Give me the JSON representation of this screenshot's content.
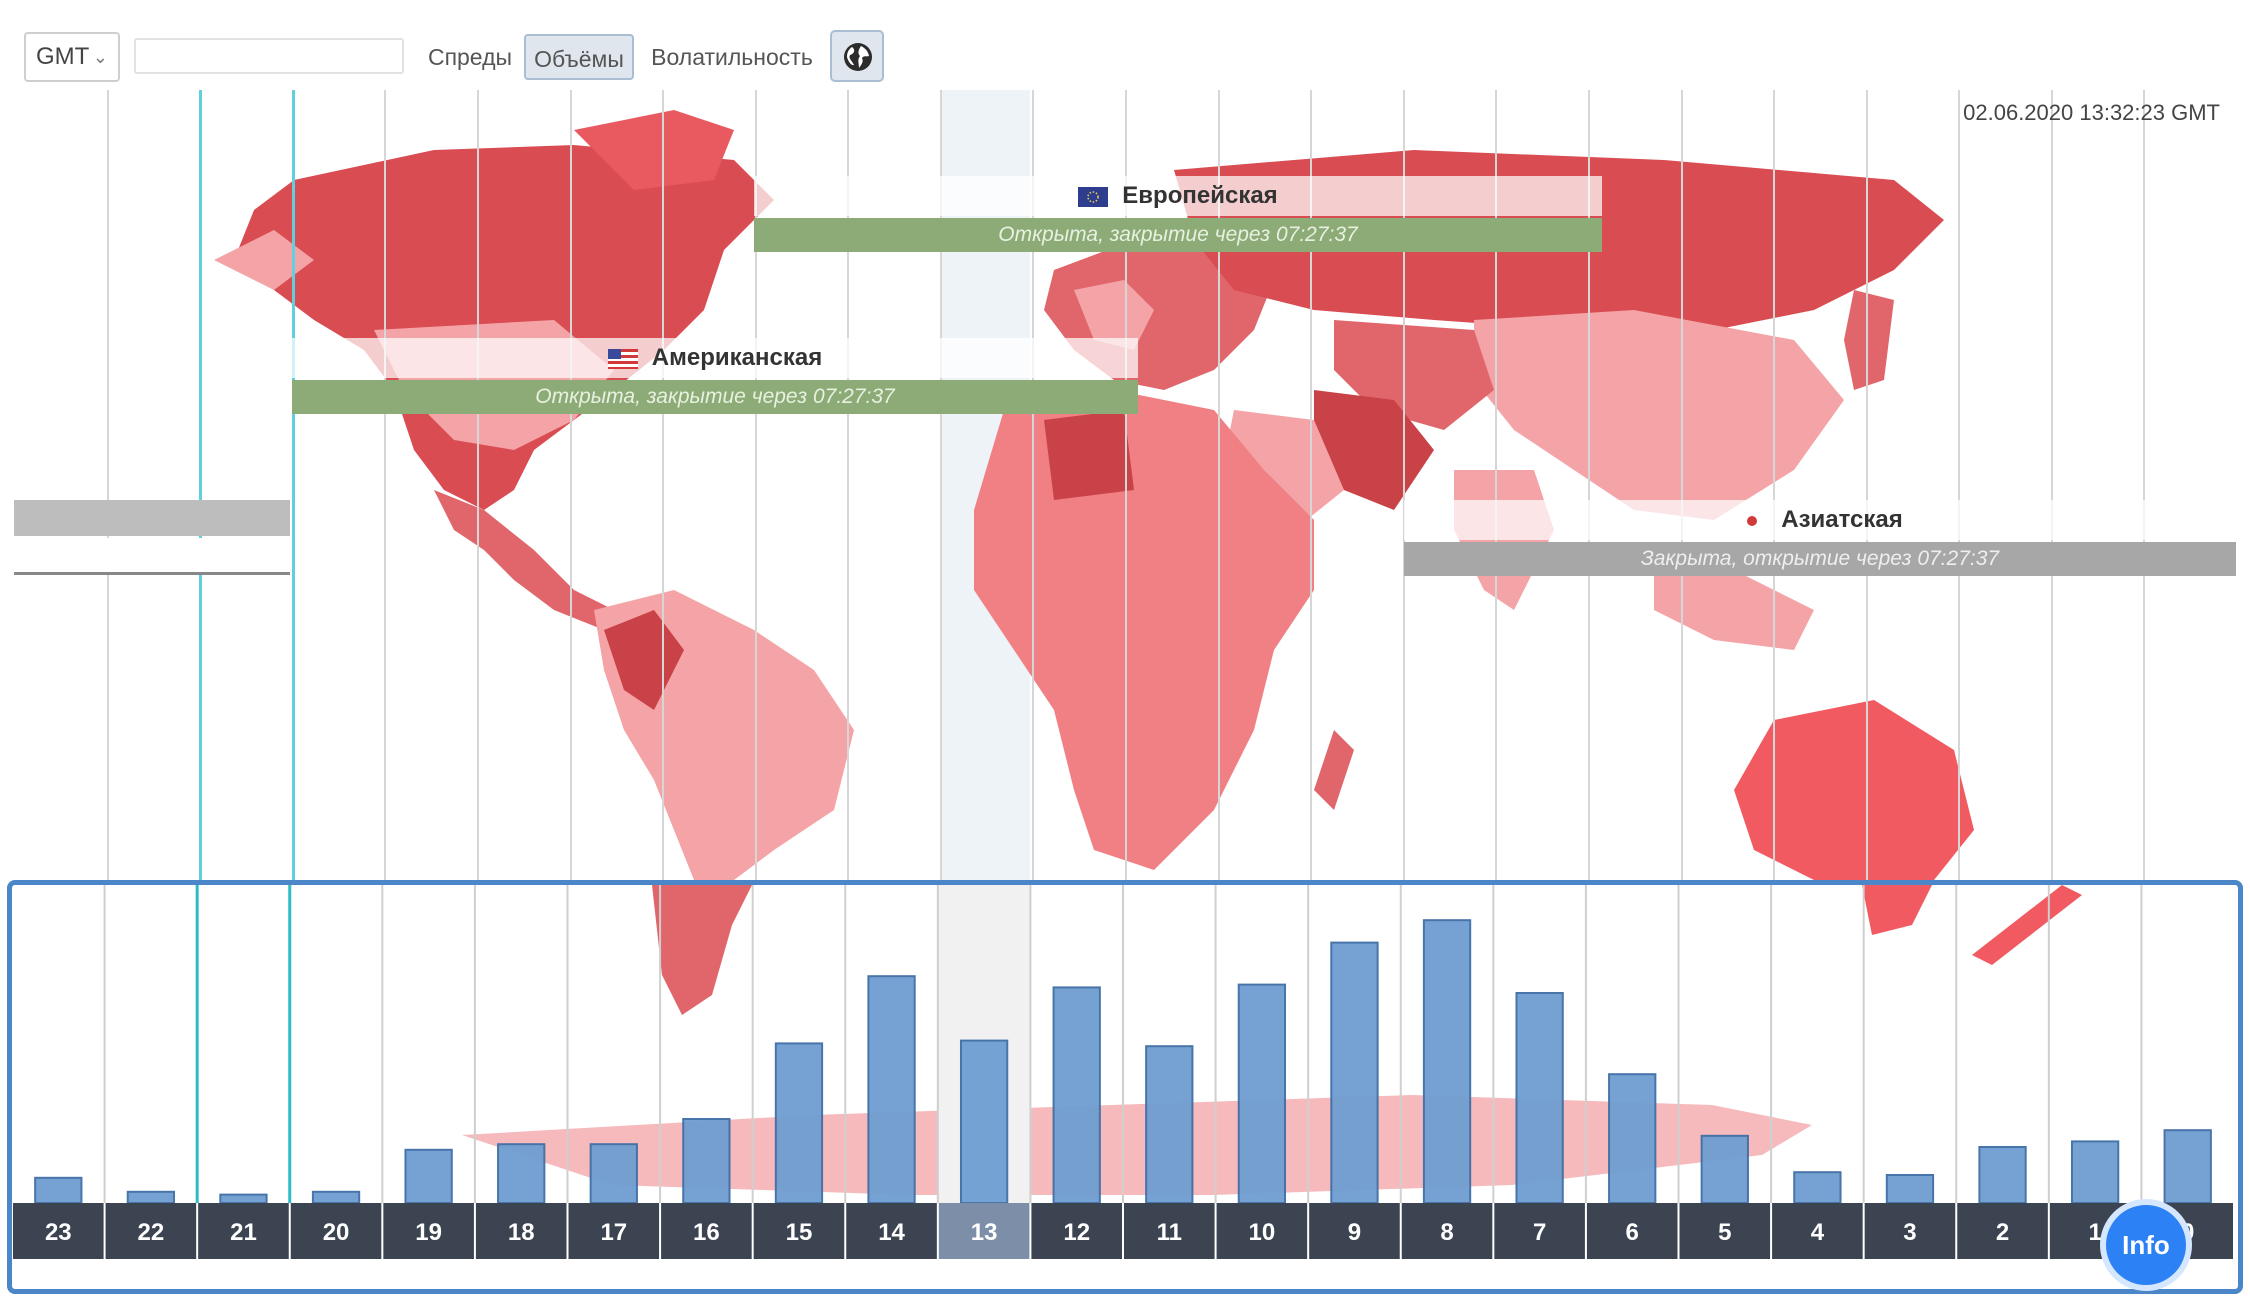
{
  "toolbar": {
    "timezone": "GMT",
    "search_value": "",
    "tabs": [
      {
        "label": "Спреды",
        "active": false
      },
      {
        "label": "Объёмы",
        "active": true
      },
      {
        "label": "Волатильность",
        "active": false
      }
    ],
    "globe_icon": "globe-icon"
  },
  "map": {
    "timestamp": "02.06.2020 13:32:23 GMT",
    "sessions": [
      {
        "name": "Европейская",
        "status": "Открыта, закрытие через 07:27:37",
        "state": "open",
        "flag": "eu"
      },
      {
        "name": "Американская",
        "status": "Открыта, закрытие через 07:27:37",
        "state": "open",
        "flag": "us"
      },
      {
        "name": "Азиатская",
        "status": "Закрыта, открытие через 07:27:37",
        "state": "closed",
        "flag": "jp"
      },
      {
        "name": "",
        "status": "",
        "state": "closed",
        "flag": ""
      }
    ]
  },
  "chart_data": {
    "type": "bar",
    "categories": [
      "23",
      "22",
      "21",
      "20",
      "19",
      "18",
      "17",
      "16",
      "15",
      "14",
      "13",
      "12",
      "11",
      "10",
      "9",
      "8",
      "7",
      "6",
      "5",
      "4",
      "3",
      "2",
      "1",
      "0"
    ],
    "values": [
      9,
      4,
      3,
      4,
      19,
      21,
      21,
      30,
      57,
      81,
      58,
      77,
      56,
      78,
      93,
      101,
      75,
      46,
      24,
      11,
      10,
      20,
      22,
      26
    ],
    "current_category": "13",
    "ylim": [
      0,
      110
    ],
    "bar_color": "#6e9ed1",
    "axis_color": "#3b4450",
    "highlight_color": "#7d8ea8",
    "grid": true
  },
  "info_button": {
    "label": "Info"
  },
  "colors": {
    "accent": "#2c82f5",
    "frame": "#4a86c8",
    "open": "#8cab77",
    "closed": "#a7a7a7",
    "map_dark": "#d84c52",
    "map_light": "#f4a3a6"
  }
}
